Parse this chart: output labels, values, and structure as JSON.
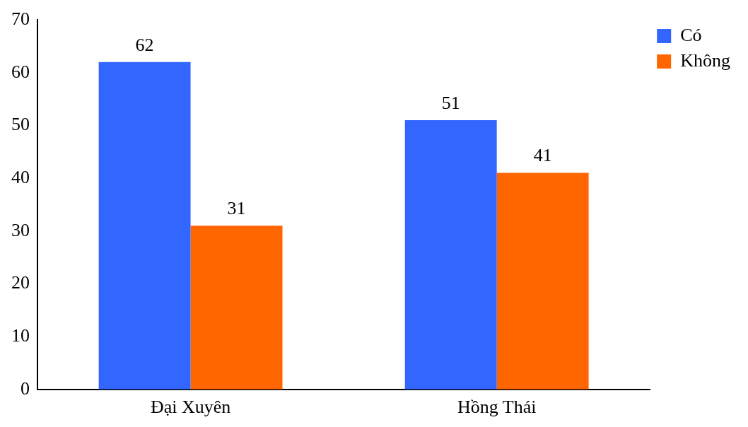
{
  "chart_data": {
    "type": "bar",
    "categories": [
      "Đại Xuyên",
      "Hồng Thái"
    ],
    "series": [
      {
        "name": "Có",
        "color": "#3366ff",
        "values": [
          62,
          51
        ]
      },
      {
        "name": "Không",
        "color": "#ff6600",
        "values": [
          31,
          41
        ]
      }
    ],
    "ylim": [
      0,
      70
    ],
    "yticks": [
      0,
      10,
      20,
      30,
      40,
      50,
      60,
      70
    ],
    "grid": false,
    "legend": "top right",
    "data_labels": true
  }
}
